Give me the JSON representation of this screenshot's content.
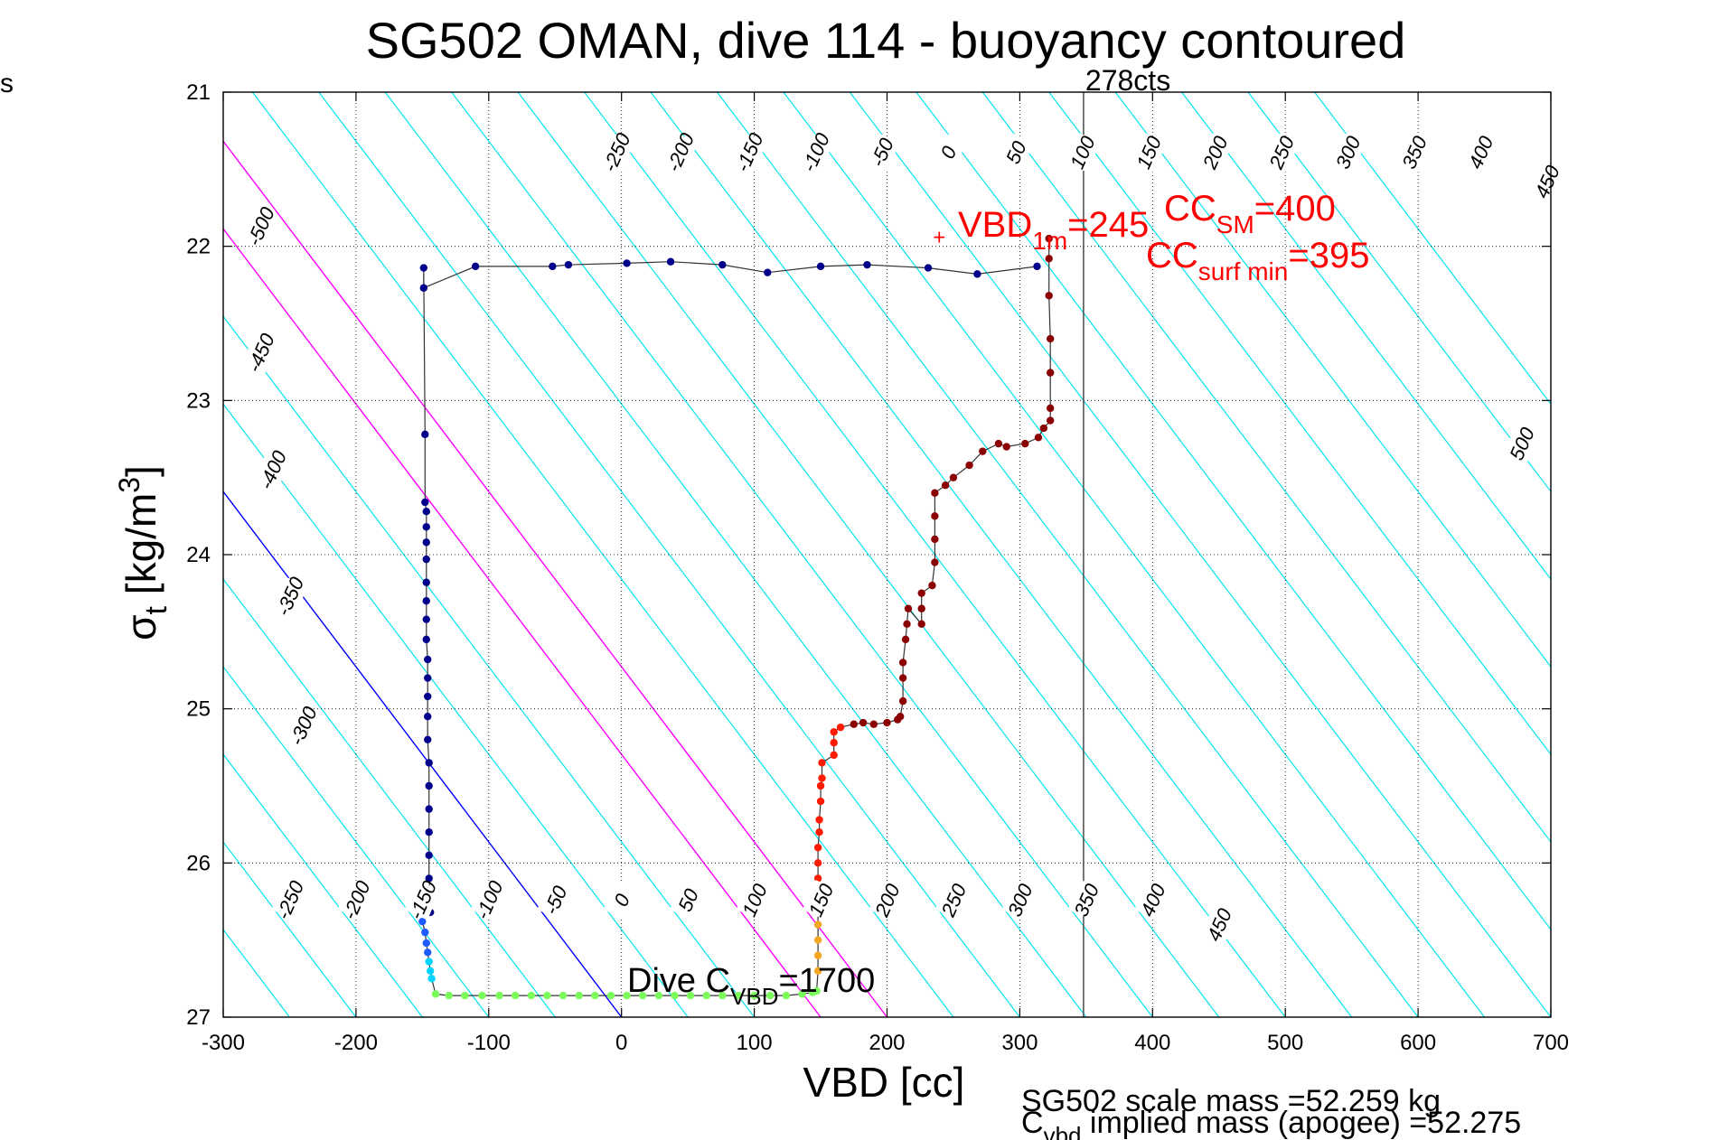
{
  "side_label": "s",
  "chart_data": {
    "type": "scatter",
    "title": "SG502 OMAN, dive 114 - buoyancy contoured",
    "xlabel": "VBD [cc]",
    "ylabel_main": "σ",
    "ylabel_sub": "t",
    "ylabel_units": " [kg/m",
    "ylabel_sup": "3",
    "ylabel_close": "]",
    "xlim": [
      -300,
      700
    ],
    "ylim": [
      27,
      21
    ],
    "y_inverted": true,
    "grid": "dotted",
    "x_ticks": [
      -300,
      -200,
      -100,
      0,
      100,
      200,
      300,
      400,
      500,
      600,
      700
    ],
    "x_tick_labels": [
      "-300",
      "-200",
      "-100",
      "0",
      "100",
      "200",
      "300",
      "400",
      "500",
      "600",
      "700"
    ],
    "y_ticks": [
      21,
      22,
      23,
      24,
      25,
      26,
      27
    ],
    "y_tick_labels": [
      "21",
      "22",
      "23",
      "24",
      "25",
      "26",
      "27"
    ],
    "contour_levels": [
      -500,
      -450,
      -400,
      -350,
      -300,
      -250,
      -200,
      -150,
      -100,
      -50,
      0,
      50,
      100,
      150,
      200,
      250,
      300,
      350,
      400,
      450,
      500
    ],
    "contour_colors": {
      "default": "#00e5ee",
      "zero": "#0000ff",
      "highlight": "#ff00ff"
    },
    "contour_labels_top": [
      {
        "text": "-500",
        "vbd": -272,
        "sig": 21.87
      },
      {
        "text": "-450",
        "vbd": -272,
        "sig": 22.69
      },
      {
        "text": "-400",
        "vbd": -263,
        "sig": 23.45
      },
      {
        "text": "-350",
        "vbd": -250,
        "sig": 24.27
      },
      {
        "text": "-300",
        "vbd": -240,
        "sig": 25.11
      },
      {
        "text": "-250",
        "vbd": -4,
        "sig": 21.39
      },
      {
        "text": "-200",
        "vbd": 44,
        "sig": 21.39
      },
      {
        "text": "-150",
        "vbd": 96,
        "sig": 21.39
      },
      {
        "text": "-100",
        "vbd": 146,
        "sig": 21.39
      },
      {
        "text": "-50",
        "vbd": 196,
        "sig": 21.39
      },
      {
        "text": "0",
        "vbd": 246,
        "sig": 21.39
      },
      {
        "text": "50",
        "vbd": 297,
        "sig": 21.39
      },
      {
        "text": "100",
        "vbd": 347,
        "sig": 21.39
      },
      {
        "text": "150",
        "vbd": 397,
        "sig": 21.39
      },
      {
        "text": "200",
        "vbd": 447,
        "sig": 21.39
      },
      {
        "text": "250",
        "vbd": 497,
        "sig": 21.39
      },
      {
        "text": "300",
        "vbd": 547,
        "sig": 21.39
      },
      {
        "text": "350",
        "vbd": 597,
        "sig": 21.39
      },
      {
        "text": "400",
        "vbd": 647,
        "sig": 21.39
      },
      {
        "text": "450",
        "vbd": 697,
        "sig": 21.58
      },
      {
        "text": "500",
        "vbd": 678,
        "sig": 23.28
      }
    ],
    "contour_labels_bottom": [
      {
        "text": "-250",
        "vbd": -250,
        "sig": 26.24
      },
      {
        "text": "-200",
        "vbd": -200,
        "sig": 26.24
      },
      {
        "text": "-150",
        "vbd": -150,
        "sig": 26.24
      },
      {
        "text": "-100",
        "vbd": -100,
        "sig": 26.24
      },
      {
        "text": "-50",
        "vbd": -50,
        "sig": 26.24
      },
      {
        "text": "0",
        "vbd": 0,
        "sig": 26.24
      },
      {
        "text": "50",
        "vbd": 50,
        "sig": 26.24
      },
      {
        "text": "100",
        "vbd": 100,
        "sig": 26.24
      },
      {
        "text": "150",
        "vbd": 150,
        "sig": 26.24
      },
      {
        "text": "200",
        "vbd": 200,
        "sig": 26.24
      },
      {
        "text": "250",
        "vbd": 250,
        "sig": 26.24
      },
      {
        "text": "300",
        "vbd": 300,
        "sig": 26.24
      },
      {
        "text": "350",
        "vbd": 350,
        "sig": 26.24
      },
      {
        "text": "400",
        "vbd": 400,
        "sig": 26.24
      },
      {
        "text": "450",
        "vbd": 450,
        "sig": 26.4
      }
    ],
    "vertical_line": {
      "vbd": 348,
      "label": "278cts"
    },
    "annotations": {
      "vbd1m": {
        "base": "VBD",
        "sub": "1m",
        "value": "=245",
        "marker": "+",
        "vbd": 240,
        "sig": 21.94,
        "color": "#ff0000"
      },
      "ccsm": {
        "base": "CC",
        "sub": "SM",
        "value": "=400",
        "color": "#ff0000"
      },
      "ccsurf": {
        "base": "CC",
        "sub": "surf min",
        "value": "=395",
        "color": "#ff0000"
      },
      "dive_cvbd": {
        "prefix": "Dive C",
        "sub": "VBD",
        "value": "=1700",
        "color": "#000000"
      }
    },
    "footer": {
      "scale_mass": "SG502 scale mass =52.259 kg",
      "implied_prefix": "C",
      "implied_sub": "vbd",
      "implied_text": " implied mass (apogee) =52.275"
    },
    "series": [
      {
        "color": "#00008b",
        "points": [
          [
            -149,
            22.14
          ],
          [
            -149,
            22.27
          ],
          [
            -110,
            22.13
          ],
          [
            -52,
            22.13
          ],
          [
            -40,
            22.12
          ],
          [
            4,
            22.11
          ],
          [
            37,
            22.1
          ],
          [
            76,
            22.12
          ],
          [
            110,
            22.17
          ],
          [
            150,
            22.13
          ],
          [
            185,
            22.12
          ],
          [
            231,
            22.14
          ],
          [
            268,
            22.18
          ],
          [
            313,
            22.13
          ]
        ]
      },
      {
        "color": "#00008b",
        "points": [
          [
            -148,
            23.22
          ],
          [
            -148,
            23.66
          ],
          [
            -147,
            23.72
          ],
          [
            -147,
            23.82
          ],
          [
            -147,
            23.92
          ],
          [
            -147,
            24.03
          ],
          [
            -147,
            24.18
          ],
          [
            -147,
            24.3
          ],
          [
            -147,
            24.42
          ],
          [
            -147,
            24.55
          ],
          [
            -146,
            24.68
          ],
          [
            -146,
            24.8
          ],
          [
            -146,
            24.92
          ],
          [
            -146,
            25.05
          ],
          [
            -146,
            25.2
          ],
          [
            -145,
            25.35
          ],
          [
            -145,
            25.5
          ],
          [
            -145,
            25.65
          ],
          [
            -145,
            25.8
          ],
          [
            -145,
            25.95
          ],
          [
            -145,
            26.1
          ],
          [
            -144,
            26.22
          ],
          [
            -144,
            26.32
          ]
        ]
      },
      {
        "color": "#1e5aff",
        "points": [
          [
            -150,
            26.38
          ],
          [
            -148,
            26.45
          ],
          [
            -147,
            26.52
          ],
          [
            -146,
            26.58
          ]
        ]
      },
      {
        "color": "#00d5ff",
        "points": [
          [
            -145,
            26.64
          ],
          [
            -144,
            26.7
          ],
          [
            -143,
            26.75
          ]
        ]
      },
      {
        "color": "#7cfc5a",
        "points": [
          [
            -140,
            26.85
          ],
          [
            -130,
            26.86
          ],
          [
            -118,
            26.86
          ],
          [
            -105,
            26.86
          ],
          [
            -92,
            26.86
          ],
          [
            -80,
            26.86
          ],
          [
            -68,
            26.86
          ],
          [
            -56,
            26.86
          ],
          [
            -44,
            26.86
          ],
          [
            -32,
            26.86
          ],
          [
            -20,
            26.86
          ],
          [
            -8,
            26.86
          ],
          [
            4,
            26.86
          ],
          [
            16,
            26.86
          ],
          [
            28,
            26.86
          ],
          [
            40,
            26.86
          ],
          [
            52,
            26.86
          ],
          [
            64,
            26.86
          ],
          [
            76,
            26.86
          ],
          [
            88,
            26.86
          ],
          [
            100,
            26.86
          ],
          [
            112,
            26.86
          ],
          [
            124,
            26.86
          ],
          [
            136,
            26.85
          ],
          [
            144,
            26.84
          ],
          [
            147,
            26.83
          ]
        ]
      },
      {
        "color": "#f5a623",
        "points": [
          [
            148,
            26.7
          ],
          [
            148,
            26.6
          ],
          [
            148,
            26.5
          ],
          [
            148,
            26.4
          ],
          [
            148,
            26.3
          ]
        ]
      },
      {
        "color": "#ff1a00",
        "points": [
          [
            148,
            26.2
          ],
          [
            148,
            26.1
          ],
          [
            148,
            26.0
          ],
          [
            148,
            25.9
          ],
          [
            149,
            25.8
          ],
          [
            149,
            25.72
          ],
          [
            150,
            25.6
          ],
          [
            150,
            25.5
          ],
          [
            151,
            25.45
          ],
          [
            151,
            25.35
          ],
          [
            160,
            25.3
          ],
          [
            160,
            25.22
          ],
          [
            160,
            25.15
          ],
          [
            165,
            25.12
          ]
        ]
      },
      {
        "color": "#8b0000",
        "points": [
          [
            175,
            25.1
          ],
          [
            182,
            25.09
          ],
          [
            190,
            25.1
          ],
          [
            200,
            25.09
          ],
          [
            208,
            25.07
          ],
          [
            210,
            25.05
          ],
          [
            212,
            24.95
          ],
          [
            212,
            24.8
          ],
          [
            212,
            24.7
          ],
          [
            214,
            24.55
          ],
          [
            215,
            24.45
          ],
          [
            216,
            24.35
          ],
          [
            226,
            24.45
          ],
          [
            226,
            24.35
          ],
          [
            226,
            24.25
          ],
          [
            234,
            24.2
          ],
          [
            236,
            24.05
          ],
          [
            236,
            23.9
          ],
          [
            236,
            23.75
          ],
          [
            236,
            23.6
          ],
          [
            244,
            23.55
          ],
          [
            250,
            23.5
          ],
          [
            262,
            23.42
          ],
          [
            272,
            23.33
          ],
          [
            284,
            23.28
          ],
          [
            290,
            23.3
          ],
          [
            304,
            23.28
          ],
          [
            314,
            23.24
          ],
          [
            318,
            23.18
          ],
          [
            323,
            23.13
          ],
          [
            323,
            23.05
          ],
          [
            323,
            22.82
          ],
          [
            323,
            22.6
          ],
          [
            322,
            22.32
          ],
          [
            322,
            22.08
          ],
          [
            322,
            21.95
          ]
        ]
      }
    ]
  }
}
